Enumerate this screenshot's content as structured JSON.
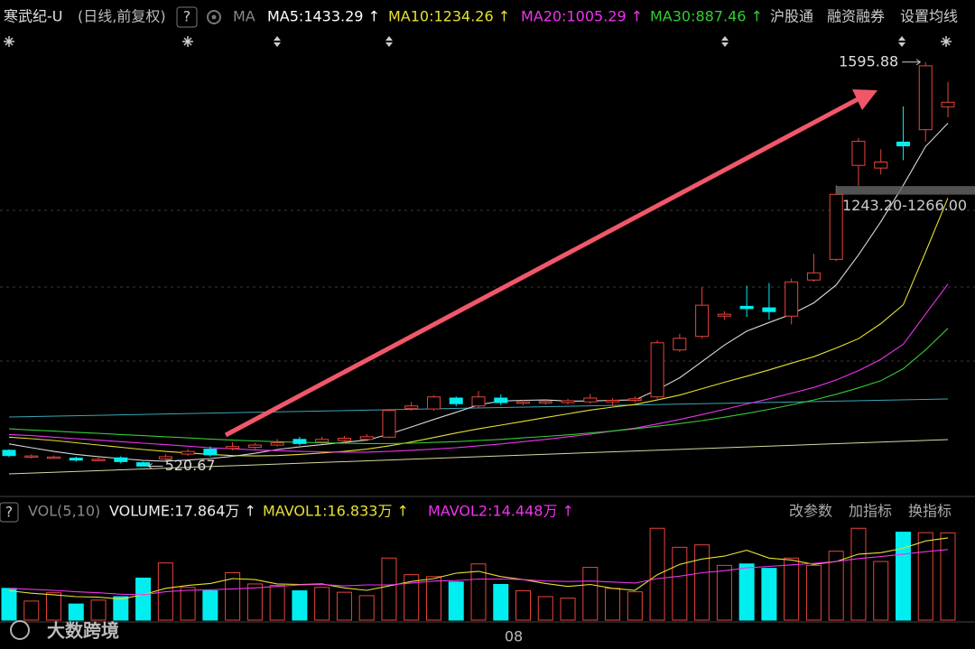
{
  "header": {
    "title": "寒武纪-U",
    "subtitle": "(日线,前复权)",
    "help": "?",
    "ma_button": "MA",
    "links": [
      "沪股通",
      "融资融券",
      "设置均线"
    ]
  },
  "chart_data": [
    {
      "type": "candlestick",
      "open": [
        563,
        546,
        544,
        542,
        537,
        543,
        530,
        540,
        553,
        566,
        568,
        571,
        577,
        592,
        585,
        589,
        592,
        598,
        674,
        673,
        702,
        681,
        702,
        688,
        689,
        690,
        692,
        692,
        696,
        705,
        830,
        866,
        920,
        946,
        942,
        920,
        1016,
        1071,
        1321,
        1314,
        1383,
        1416,
        1477
      ],
      "high": [
        566,
        552,
        549,
        546,
        543,
        547,
        533,
        553,
        566,
        573,
        585,
        583,
        593,
        599,
        599,
        601,
        606,
        673,
        692,
        709,
        706,
        721,
        712,
        698,
        699,
        700,
        713,
        702,
        707,
        856,
        873,
        997,
        933,
        1001,
        1008,
        1020,
        1086,
        1268,
        1394,
        1364,
        1478,
        1595.88,
        1543
      ],
      "low": [
        545,
        541,
        540,
        533,
        533,
        528,
        520.67,
        535,
        548,
        546,
        563,
        566,
        573,
        576,
        580,
        583,
        587,
        595,
        668,
        668,
        680,
        676,
        683,
        683,
        685,
        685,
        687,
        683,
        690,
        700,
        825,
        860,
        910,
        918,
        910,
        898,
        1011,
        1066,
        1266,
        1297,
        1335,
        1385,
        1449
      ],
      "close": [
        549,
        548,
        545,
        537,
        539,
        533,
        521,
        546,
        560,
        551,
        573,
        577,
        583,
        581,
        592,
        595,
        599,
        669,
        681,
        705,
        687,
        705,
        690,
        692,
        693,
        695,
        702,
        696,
        700,
        849,
        861,
        949,
        925,
        940,
        932,
        1011,
        1035,
        1244,
        1385,
        1330,
        1373,
        1586,
        1489
      ],
      "up_color": "#e8453c",
      "down_color": "#00eef0",
      "ylim": [
        445,
        1665
      ],
      "series": [
        {
          "name": "MA5",
          "label": "MA5:1433.29 ↑",
          "color": "#d8d8d8",
          "values": [
            580,
            570,
            560,
            552,
            546,
            541,
            536,
            534,
            537,
            541,
            547,
            555,
            565,
            572,
            578,
            584,
            590,
            606,
            625,
            645,
            664,
            684,
            694,
            696,
            697,
            694,
            694,
            696,
            697,
            724,
            756,
            799,
            843,
            880,
            903,
            925,
            955,
            1003,
            1083,
            1171,
            1268,
            1371,
            1433.29
          ]
        },
        {
          "name": "MA10",
          "label": "MA10:1234.26 ↑",
          "color": "#e6e030",
          "values": [
            598,
            594,
            589,
            583,
            577,
            571,
            565,
            560,
            556,
            552,
            549,
            548,
            549,
            552,
            556,
            560,
            566,
            575,
            585,
            597,
            609,
            620,
            630,
            640,
            650,
            660,
            670,
            678,
            685,
            697,
            710,
            727,
            744,
            760,
            777,
            795,
            812,
            835,
            860,
            900,
            950,
            1090,
            1234.26
          ]
        },
        {
          "name": "MA20",
          "label": "MA20:1005.29 ↑",
          "color": "#ee33ee",
          "values": [
            605,
            602,
            598,
            594,
            590,
            586,
            582,
            578,
            574,
            570,
            567,
            564,
            562,
            560,
            559,
            558,
            558,
            560,
            563,
            566,
            570,
            575,
            580,
            586,
            592,
            599,
            606,
            614,
            622,
            633,
            645,
            658,
            672,
            686,
            700,
            715,
            730,
            750,
            775,
            805,
            845,
            925,
            1005.29
          ]
        },
        {
          "name": "MA30",
          "label": "MA30:887.46 ↑",
          "color": "#33cc33",
          "values": [
            620,
            617,
            614,
            611,
            608,
            605,
            602,
            599,
            596,
            593,
            590,
            588,
            586,
            584,
            583,
            582,
            581,
            581,
            582,
            584,
            586,
            589,
            592,
            596,
            600,
            604,
            609,
            614,
            620,
            627,
            634,
            642,
            651,
            661,
            672,
            684,
            697,
            712,
            729,
            748,
            780,
            830,
            887.46
          ]
        }
      ],
      "annotations": [
        {
          "label": "1595.88",
          "value": 1595.88,
          "index": 41
        },
        {
          "label": "520.67",
          "value": 520.67,
          "index": 6
        }
      ],
      "price_band": {
        "label": "1243.20-1266.00",
        "low": 1243.2,
        "high": 1266.0
      }
    },
    {
      "type": "bar",
      "title": "VOL(5,10)",
      "current_label": "VOLUME:17.864万 ↑",
      "values": [
        6.5,
        3.9,
        5.6,
        3.3,
        4.1,
        4.8,
        8.6,
        11.7,
        6.7,
        6.0,
        9.7,
        7.4,
        7.1,
        6.0,
        6.7,
        5.7,
        5.0,
        12.7,
        9.3,
        8.9,
        7.8,
        11.5,
        7.3,
        6.0,
        4.8,
        4.5,
        10.8,
        6.5,
        5.8,
        18.8,
        14.9,
        15.4,
        11.2,
        11.5,
        10.6,
        12.7,
        11.2,
        14.1,
        18.8,
        12.0,
        18.0,
        17.9,
        17.864
      ],
      "ylim": [
        0,
        19.4
      ],
      "series": [
        {
          "name": "MAVOL1",
          "label": "MAVOL1:16.833万 ↑",
          "color": "#e6e030",
          "values": [
            6,
            5.5,
            5.2,
            4.8,
            4.7,
            4.3,
            5.2,
            6.5,
            7.1,
            7.5,
            8.5,
            8.3,
            7.4,
            7.3,
            7.4,
            6.6,
            6.1,
            7.0,
            7.9,
            8.5,
            9.6,
            10.0,
            8.9,
            8.3,
            7.5,
            6.9,
            7.3,
            6.5,
            6.1,
            9.3,
            11.4,
            12.5,
            13.1,
            14.3,
            12.7,
            12.3,
            11.4,
            12.0,
            13.5,
            13.8,
            14.7,
            16.2,
            16.833
          ]
        },
        {
          "name": "MAVOL2",
          "label": "MAVOL2:14.448万 ↑",
          "color": "#ee33ee",
          "values": [
            6.5,
            6.3,
            6.1,
            5.8,
            5.6,
            5.3,
            5.2,
            5.8,
            6.1,
            6.2,
            6.4,
            6.6,
            6.9,
            7.2,
            7.3,
            7.0,
            7.2,
            7.2,
            7.6,
            8.0,
            8.1,
            8.4,
            8.4,
            8.3,
            8.0,
            7.9,
            8.0,
            7.8,
            7.6,
            8.5,
            9.0,
            9.7,
            10.1,
            10.7,
            11.0,
            11.3,
            11.6,
            12.0,
            12.6,
            13.0,
            13.5,
            14.0,
            14.448
          ]
        }
      ],
      "buttons": [
        "改参数",
        "加指标",
        "换指标"
      ]
    }
  ],
  "x_axis_label": "08",
  "watermark": "大数跨境"
}
